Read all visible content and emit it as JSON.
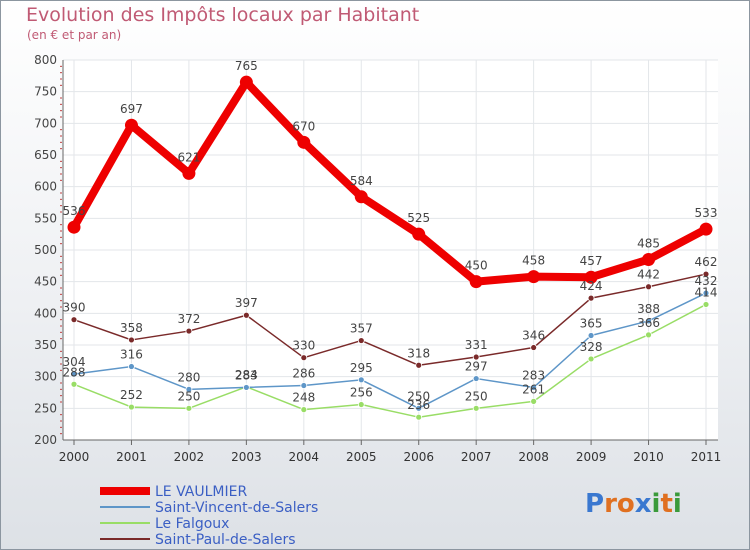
{
  "header": {
    "title": "Evolution des Impôts locaux par Habitant",
    "subtitle": "(en € et par an)"
  },
  "brand": {
    "letters": [
      "P",
      "r",
      "o",
      "x",
      "i",
      "t",
      "i"
    ],
    "colors": [
      "#3a78d0",
      "#e07020",
      "#e07020",
      "#3a78d0",
      "#3a9a3a",
      "#e07020",
      "#3a9a3a"
    ]
  },
  "chart_data": {
    "type": "line",
    "title": "Evolution des Impôts locaux par Habitant",
    "subtitle": "(en € et par an)",
    "xlabel": "",
    "ylabel": "",
    "ylim": [
      200,
      800
    ],
    "yticks": [
      200,
      250,
      300,
      350,
      400,
      450,
      500,
      550,
      600,
      650,
      700,
      750,
      800
    ],
    "grid": true,
    "legend_position": "bottom-left",
    "categories": [
      "2000",
      "2001",
      "2002",
      "2003",
      "2004",
      "2005",
      "2006",
      "2007",
      "2008",
      "2009",
      "2010",
      "2011"
    ],
    "series": [
      {
        "name": "Saint-Paul-de-Salers",
        "color": "#7a2a2a",
        "values": [
          390,
          358,
          372,
          397,
          330,
          357,
          318,
          331,
          346,
          424,
          442,
          462
        ],
        "labels": [
          "390",
          "358",
          "372",
          "397",
          "330",
          "357",
          "318",
          "331",
          "346",
          "424",
          "442",
          "462"
        ]
      },
      {
        "name": "Le Falgoux",
        "color": "#99dd66",
        "values": [
          288,
          252,
          250,
          284,
          248,
          256,
          236,
          250,
          261,
          328,
          366,
          414
        ],
        "labels": [
          "288",
          "252",
          "250",
          "284",
          "248",
          "256",
          "236",
          "250",
          "261",
          "328",
          "366",
          "414"
        ]
      },
      {
        "name": "Saint-Vincent-de-Salers",
        "color": "#5e96c8",
        "values": [
          304,
          316,
          280,
          283,
          286,
          295,
          250,
          297,
          283,
          365,
          388,
          432
        ],
        "labels": [
          "304",
          "316",
          "280",
          "283",
          "286",
          "295",
          "250",
          "297",
          "283",
          "365",
          "388",
          "432"
        ]
      },
      {
        "name": "LE VAULMIER",
        "color": "#ee0000",
        "values": [
          536,
          697,
          621,
          765,
          670,
          584,
          525,
          450,
          458,
          457,
          485,
          533
        ],
        "labels": [
          "536",
          "697",
          "621",
          "765",
          "670",
          "584",
          "525",
          "450",
          "458",
          "457",
          "485",
          "533"
        ]
      }
    ],
    "legend": [
      "LE VAULMIER",
      "Saint-Vincent-de-Salers",
      "Le Falgoux",
      "Saint-Paul-de-Salers"
    ]
  }
}
